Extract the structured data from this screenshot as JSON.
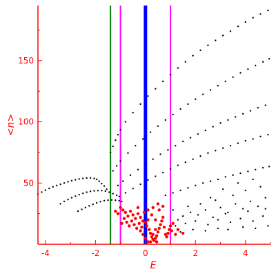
{
  "chart_data": {
    "type": "scatter",
    "title": "",
    "xlabel": "E",
    "ylabel": "<n>",
    "xlim": [
      -4.3,
      5.0
    ],
    "ylim": [
      0,
      195
    ],
    "grid": false,
    "x_ticks": [
      -4,
      -2,
      0,
      2,
      4
    ],
    "x_tick_labels": [
      "-4",
      "-2",
      "0",
      "2",
      "4"
    ],
    "y_ticks": [
      50,
      100,
      150
    ],
    "y_tick_labels": [
      "50",
      "100",
      "150"
    ],
    "colors": {
      "axis": "#ff0000",
      "series_black": "#000000",
      "series_red": "#ff0000",
      "line_green": "#008000",
      "line_magenta": "#ff00ff",
      "line_blue": "#0000ff"
    },
    "vertical_lines": [
      {
        "x": -1.4,
        "color": "#008000"
      },
      {
        "x": -1.0,
        "color": "#ff00ff"
      },
      {
        "x": 0.0,
        "color": "#0000ff"
      },
      {
        "x": 1.0,
        "color": "#ff00ff"
      }
    ],
    "series": [
      {
        "color": "#000000",
        "points": [
          [
            -4.3,
            41
          ],
          [
            -4.15,
            42.6
          ],
          [
            -4.0,
            44.2
          ],
          [
            -3.85,
            45.6
          ],
          [
            -3.7,
            46.9
          ],
          [
            -3.55,
            48
          ],
          [
            -3.4,
            49
          ],
          [
            -3.25,
            50
          ],
          [
            -3.1,
            51
          ],
          [
            -2.95,
            51.9
          ],
          [
            -2.8,
            52.7
          ],
          [
            -2.65,
            53.3
          ],
          [
            -2.5,
            53.8
          ],
          [
            -2.35,
            54.1
          ],
          [
            -2.2,
            54.2
          ],
          [
            -2.05,
            53.8
          ],
          [
            -1.95,
            53
          ],
          [
            -1.85,
            51.5
          ],
          [
            -1.75,
            49.5
          ],
          [
            -1.65,
            47.5
          ],
          [
            -1.55,
            45
          ]
        ]
      },
      {
        "color": "#000000",
        "points": [
          [
            -3.4,
            33
          ],
          [
            -3.25,
            35
          ],
          [
            -3.1,
            36.5
          ],
          [
            -2.95,
            38
          ],
          [
            -2.8,
            39.3
          ],
          [
            -2.65,
            40.5
          ],
          [
            -2.5,
            41.6
          ],
          [
            -2.35,
            42.5
          ],
          [
            -2.2,
            43.2
          ],
          [
            -2.05,
            43.6
          ],
          [
            -1.9,
            43.8
          ],
          [
            -1.75,
            43.8
          ],
          [
            -1.6,
            43.4
          ],
          [
            -1.45,
            42.5
          ],
          [
            -1.3,
            41.3
          ],
          [
            -1.15,
            40
          ],
          [
            -1.05,
            39
          ]
        ]
      },
      {
        "color": "#000000",
        "points": [
          [
            -2.7,
            27
          ],
          [
            -2.55,
            28.5
          ],
          [
            -2.4,
            30
          ],
          [
            -2.25,
            31.3
          ],
          [
            -2.1,
            32.6
          ],
          [
            -1.95,
            33.8
          ],
          [
            -1.8,
            34.8
          ],
          [
            -1.65,
            35.6
          ],
          [
            -1.5,
            36
          ],
          [
            -1.35,
            36.2
          ],
          [
            -1.2,
            36
          ],
          [
            -1.05,
            35.6
          ],
          [
            -0.95,
            35
          ]
        ]
      },
      {
        "color": "#000000",
        "points": [
          [
            -1.4,
            75
          ],
          [
            -1.3,
            80
          ],
          [
            -1.2,
            85
          ],
          [
            -1.1,
            89.5
          ],
          [
            -1.0,
            93.5
          ],
          [
            -0.8,
            100
          ],
          [
            -0.5,
            107.5
          ],
          [
            -0.2,
            114.5
          ],
          [
            0.1,
            121
          ],
          [
            0.4,
            127
          ],
          [
            0.7,
            133
          ],
          [
            1.0,
            138.5
          ],
          [
            1.3,
            144
          ],
          [
            1.6,
            149
          ],
          [
            1.9,
            154
          ],
          [
            2.2,
            158.5
          ],
          [
            2.5,
            162.5
          ],
          [
            2.8,
            166.5
          ],
          [
            3.1,
            170.5
          ],
          [
            3.4,
            174
          ],
          [
            3.7,
            178
          ],
          [
            4.0,
            181.5
          ],
          [
            4.3,
            185
          ],
          [
            4.6,
            188
          ],
          [
            4.9,
            191
          ]
        ]
      },
      {
        "color": "#000000",
        "points": [
          [
            -1.3,
            60
          ],
          [
            -1.15,
            64
          ],
          [
            -1.0,
            68
          ],
          [
            -0.7,
            74.5
          ],
          [
            -0.4,
            80.5
          ],
          [
            -0.1,
            86
          ],
          [
            0.2,
            91.5
          ],
          [
            0.5,
            96.5
          ],
          [
            0.8,
            101.5
          ],
          [
            1.1,
            106
          ],
          [
            1.4,
            110.5
          ],
          [
            1.7,
            114.5
          ],
          [
            2.0,
            118.5
          ],
          [
            2.3,
            122.5
          ],
          [
            2.6,
            126
          ],
          [
            2.9,
            129.5
          ],
          [
            3.2,
            133
          ],
          [
            3.5,
            136.5
          ],
          [
            3.8,
            140
          ],
          [
            4.1,
            143
          ],
          [
            4.4,
            146
          ],
          [
            4.7,
            149
          ],
          [
            4.95,
            151.5
          ]
        ]
      },
      {
        "color": "#000000",
        "points": [
          [
            -1.1,
            48
          ],
          [
            -0.9,
            51.5
          ],
          [
            -0.6,
            56.5
          ],
          [
            -0.3,
            61
          ],
          [
            0.0,
            65.5
          ],
          [
            0.3,
            69.5
          ],
          [
            0.6,
            73.5
          ],
          [
            0.9,
            77
          ],
          [
            1.2,
            80.5
          ],
          [
            1.5,
            84
          ],
          [
            1.8,
            87
          ],
          [
            2.1,
            90
          ],
          [
            2.4,
            93
          ],
          [
            2.7,
            96
          ],
          [
            3.0,
            99
          ],
          [
            3.3,
            101.5
          ],
          [
            3.6,
            104
          ],
          [
            3.9,
            106.5
          ],
          [
            4.2,
            109
          ],
          [
            4.5,
            111.5
          ],
          [
            4.8,
            113.5
          ]
        ]
      },
      {
        "color": "#000000",
        "points": [
          [
            -0.8,
            42
          ],
          [
            -0.5,
            45.5
          ],
          [
            -0.2,
            49
          ],
          [
            0.1,
            52.5
          ],
          [
            0.4,
            55.5
          ],
          [
            0.7,
            58.5
          ],
          [
            1.0,
            61.5
          ],
          [
            1.3,
            64.5
          ],
          [
            1.6,
            67
          ],
          [
            1.9,
            69.5
          ],
          [
            2.2,
            72
          ],
          [
            2.5,
            74.5
          ],
          [
            2.8,
            76.5
          ],
          [
            3.1,
            78.5
          ],
          [
            3.4,
            80.5
          ],
          [
            3.7,
            82.5
          ],
          [
            4.0,
            84.5
          ],
          [
            4.3,
            86
          ],
          [
            4.6,
            88
          ],
          [
            4.9,
            89.5
          ]
        ]
      },
      {
        "color": "#000000",
        "points": [
          [
            0.8,
            40
          ],
          [
            1.1,
            42
          ],
          [
            1.4,
            44
          ],
          [
            1.7,
            46
          ],
          [
            2.0,
            48
          ],
          [
            2.3,
            50
          ],
          [
            2.6,
            51.5
          ],
          [
            2.9,
            53
          ],
          [
            3.2,
            55
          ],
          [
            3.5,
            56.5
          ],
          [
            3.8,
            58
          ],
          [
            4.1,
            59.5
          ],
          [
            4.4,
            61
          ],
          [
            4.7,
            62.5
          ],
          [
            4.95,
            63.5
          ]
        ]
      },
      {
        "color": "#000000",
        "points": [
          [
            1.3,
            20
          ],
          [
            1.5,
            23
          ],
          [
            1.8,
            26
          ],
          [
            2.1,
            24
          ],
          [
            2.4,
            28
          ],
          [
            2.7,
            22
          ],
          [
            3.0,
            30
          ],
          [
            3.3,
            26
          ],
          [
            3.6,
            33
          ],
          [
            3.9,
            29
          ],
          [
            4.2,
            35
          ],
          [
            4.5,
            31
          ],
          [
            4.8,
            38
          ],
          [
            1.2,
            15
          ],
          [
            1.6,
            17
          ],
          [
            2.0,
            19
          ],
          [
            2.5,
            16
          ],
          [
            2.9,
            20
          ],
          [
            3.4,
            18
          ],
          [
            3.8,
            21
          ],
          [
            4.3,
            19
          ],
          [
            4.7,
            23
          ],
          [
            1.4,
            10
          ],
          [
            1.9,
            12
          ],
          [
            2.4,
            11
          ],
          [
            2.9,
            13
          ],
          [
            3.3,
            12
          ],
          [
            3.9,
            14
          ],
          [
            4.4,
            13
          ],
          [
            4.9,
            15
          ],
          [
            2.2,
            33
          ],
          [
            2.8,
            36
          ],
          [
            3.5,
            40
          ],
          [
            4.0,
            44
          ],
          [
            4.6,
            47
          ],
          [
            3.1,
            45
          ],
          [
            3.7,
            50
          ],
          [
            4.3,
            53
          ],
          [
            1.1,
            28
          ],
          [
            1.7,
            31
          ],
          [
            2.6,
            38
          ],
          [
            3.2,
            25
          ],
          [
            4.1,
            27
          ],
          [
            4.8,
            29
          ]
        ]
      },
      {
        "color": "#ff0000",
        "points": [
          [
            -1.2,
            27
          ],
          [
            -1.1,
            25
          ],
          [
            -0.9,
            28
          ],
          [
            -0.8,
            26
          ],
          [
            -0.7,
            23
          ],
          [
            -0.6,
            27
          ],
          [
            -0.5,
            24
          ],
          [
            -0.4,
            21
          ],
          [
            -0.3,
            25
          ],
          [
            -0.2,
            22
          ],
          [
            -0.1,
            19
          ],
          [
            0.0,
            18
          ],
          [
            0.05,
            15
          ],
          [
            0.1,
            20
          ],
          [
            0.15,
            12
          ],
          [
            0.2,
            9
          ],
          [
            0.25,
            6
          ],
          [
            0.3,
            4
          ],
          [
            0.35,
            3
          ],
          [
            0.4,
            5
          ],
          [
            0.45,
            7
          ],
          [
            0.5,
            10
          ],
          [
            0.55,
            13
          ],
          [
            0.6,
            16
          ],
          [
            0.65,
            19
          ],
          [
            0.7,
            22
          ],
          [
            0.75,
            14
          ],
          [
            0.8,
            8
          ],
          [
            0.85,
            6
          ],
          [
            0.9,
            9
          ],
          [
            0.95,
            12
          ],
          [
            1.0,
            15
          ],
          [
            1.05,
            11
          ],
          [
            1.1,
            17
          ],
          [
            1.2,
            8
          ],
          [
            1.3,
            12
          ],
          [
            1.5,
            9
          ],
          [
            -0.15,
            14
          ],
          [
            -0.25,
            17
          ],
          [
            -0.35,
            13
          ],
          [
            -0.45,
            16
          ],
          [
            -0.55,
            19
          ],
          [
            -0.65,
            15
          ],
          [
            -0.75,
            18
          ],
          [
            -0.85,
            21
          ],
          [
            -0.95,
            17
          ],
          [
            -1.0,
            30
          ],
          [
            -0.3,
            30
          ],
          [
            0.3,
            30
          ],
          [
            0.5,
            33
          ],
          [
            -0.05,
            26
          ],
          [
            0.1,
            28
          ],
          [
            0.25,
            24
          ],
          [
            0.4,
            20
          ],
          [
            0.55,
            28
          ],
          [
            0.7,
            31
          ],
          [
            -0.2,
            11
          ],
          [
            -0.1,
            8
          ],
          [
            0.0,
            5
          ],
          [
            0.1,
            2
          ],
          [
            0.2,
            2
          ],
          [
            0.3,
            8
          ],
          [
            0.4,
            12
          ],
          [
            0.45,
            2
          ]
        ]
      }
    ]
  }
}
